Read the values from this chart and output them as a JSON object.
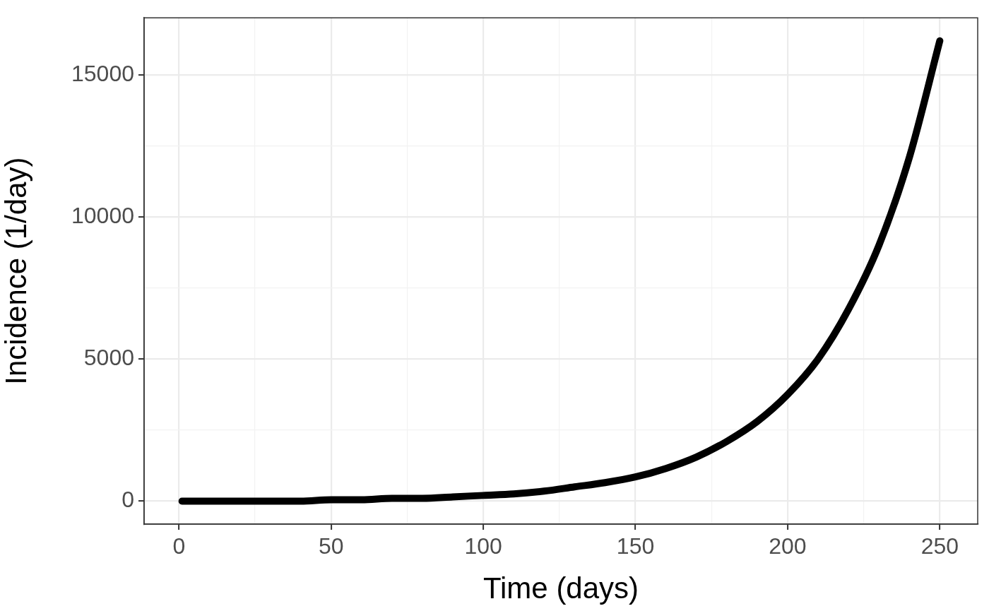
{
  "chart_data": {
    "type": "line",
    "xlabel": "Time (days)",
    "ylabel": "Incidence (1/day)",
    "x": [
      1,
      10,
      20,
      30,
      40,
      50,
      60,
      70,
      80,
      90,
      100,
      110,
      120,
      130,
      140,
      150,
      160,
      170,
      180,
      190,
      200,
      210,
      220,
      230,
      240,
      250
    ],
    "series": [
      {
        "color": "#000000",
        "values": [
          0,
          0,
          0,
          0,
          0,
          50,
          50,
          100,
          100,
          150,
          200,
          250,
          350,
          500,
          650,
          850,
          1150,
          1550,
          2100,
          2800,
          3750,
          5000,
          6750,
          9000,
          12100,
          16200
        ]
      }
    ],
    "xlim": [
      -11.45,
      262.45
    ],
    "xticks": [
      0,
      {
        "value": 25,
        "label": null
      },
      50,
      {
        "value": 75,
        "label": null
      },
      100,
      {
        "value": 125,
        "label": null
      },
      150,
      {
        "value": 175,
        "label": null
      },
      200,
      {
        "value": 225,
        "label": null
      },
      250
    ],
    "ylim": [
      -810,
      17010
    ],
    "yticks": [
      0,
      {
        "value": 2500,
        "label": null
      },
      5000,
      {
        "value": 7500,
        "label": null
      },
      10000,
      {
        "value": 12500,
        "label": null
      },
      15000
    ],
    "grid": true,
    "legend": false,
    "marker": "none",
    "line_style": "solid"
  }
}
